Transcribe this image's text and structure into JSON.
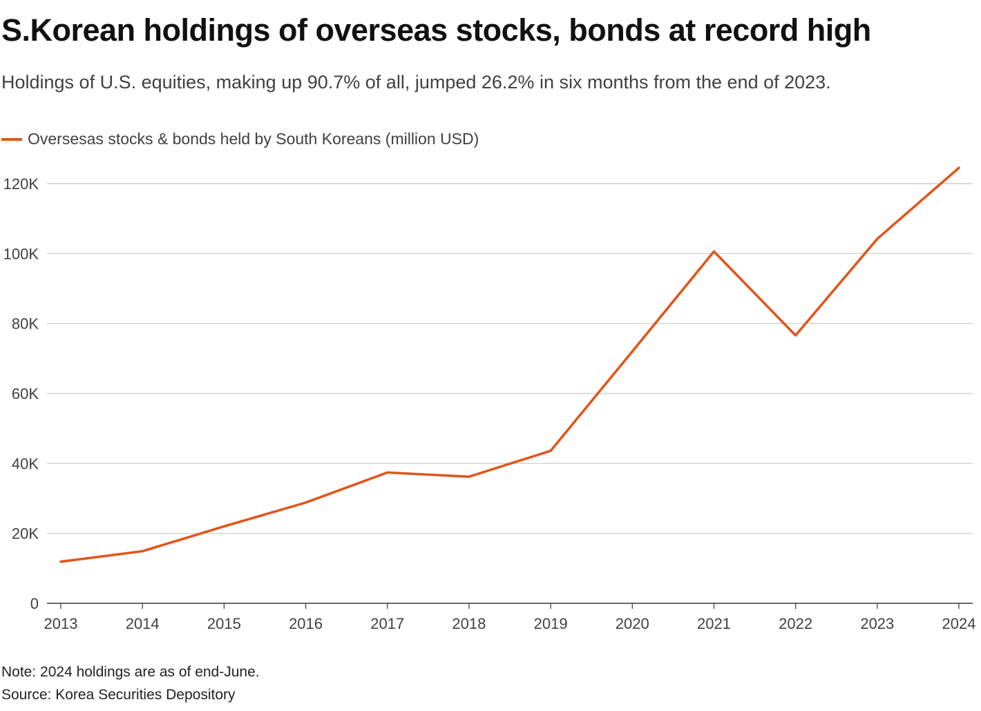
{
  "chart_data": {
    "type": "line",
    "title": "S.Korean holdings of overseas stocks, bonds at record high",
    "subtitle": "Holdings of U.S. equities, making up 90.7% of all, jumped 26.2% in six months from the end of 2023.",
    "categories": [
      "2013",
      "2014",
      "2015",
      "2016",
      "2017",
      "2018",
      "2019",
      "2020",
      "2021",
      "2022",
      "2023",
      "2024"
    ],
    "series": [
      {
        "name": "Oversesas stocks & bonds held by South Koreans (million USD)",
        "color": "#e0561b",
        "values": [
          11900,
          14900,
          22000,
          28800,
          37400,
          36200,
          43600,
          72000,
          100600,
          76600,
          104200,
          124500
        ]
      }
    ],
    "ylim": [
      0,
      120000
    ],
    "yticks": [
      0,
      20000,
      40000,
      60000,
      80000,
      100000,
      120000
    ],
    "ytick_labels": [
      "0",
      "20K",
      "40K",
      "60K",
      "80K",
      "100K",
      "120K"
    ],
    "xlabel": "",
    "ylabel": "",
    "grid": true,
    "legend": "top-left"
  },
  "footer": {
    "note": "Note: 2024 holdings are as of end-June.",
    "source": "Source: Korea Securities Depository"
  },
  "colors": {
    "series": "#e0561b",
    "grid": "#c8c8c8",
    "axis": "#333333",
    "tick_text": "#404040"
  }
}
